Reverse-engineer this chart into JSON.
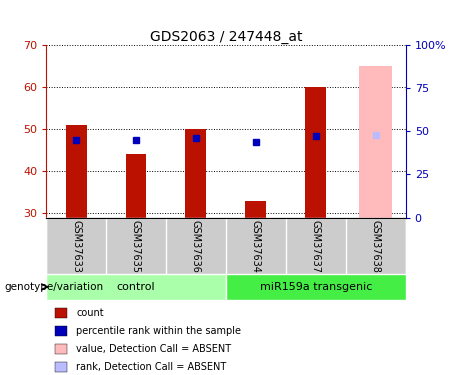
{
  "title": "GDS2063 / 247448_at",
  "samples": [
    "GSM37633",
    "GSM37635",
    "GSM37636",
    "GSM37634",
    "GSM37637",
    "GSM37638"
  ],
  "red_values": [
    51,
    44,
    50,
    33,
    60,
    null
  ],
  "pink_values": [
    null,
    null,
    null,
    null,
    null,
    65
  ],
  "blue_values": [
    45,
    45,
    46,
    44,
    47,
    null
  ],
  "blue_absent_values": [
    null,
    null,
    null,
    null,
    null,
    48
  ],
  "ylim_left": [
    29,
    70
  ],
  "ylim_right": [
    0,
    100
  ],
  "yticks_left": [
    30,
    40,
    50,
    60,
    70
  ],
  "yticks_right": [
    0,
    25,
    50,
    75,
    100
  ],
  "yticklabels_right": [
    "0",
    "25",
    "50",
    "75",
    "100%"
  ],
  "bar_width": 0.35,
  "red_color": "#bb1100",
  "pink_color": "#ffbbbb",
  "blue_color": "#0000bb",
  "light_blue_color": "#bbbbff",
  "control_samples": [
    0,
    1,
    2
  ],
  "transgenic_samples": [
    3,
    4,
    5
  ],
  "group_labels": [
    "control",
    "miR159a transgenic"
  ],
  "green_light": "#aaffaa",
  "green_dark": "#44ee44",
  "xlabel": "genotype/variation",
  "legend_items": [
    "count",
    "percentile rank within the sample",
    "value, Detection Call = ABSENT",
    "rank, Detection Call = ABSENT"
  ],
  "legend_colors": [
    "#bb1100",
    "#0000bb",
    "#ffbbbb",
    "#bbbbff"
  ]
}
